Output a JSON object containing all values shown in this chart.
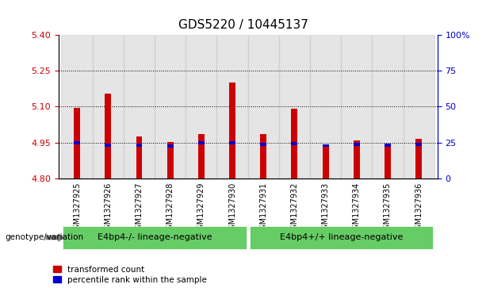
{
  "title": "GDS5220 / 10445137",
  "samples": [
    "GSM1327925",
    "GSM1327926",
    "GSM1327927",
    "GSM1327928",
    "GSM1327929",
    "GSM1327930",
    "GSM1327931",
    "GSM1327932",
    "GSM1327933",
    "GSM1327934",
    "GSM1327935",
    "GSM1327936"
  ],
  "red_values": [
    5.095,
    5.155,
    4.975,
    4.952,
    4.985,
    5.2,
    4.985,
    5.09,
    4.94,
    4.96,
    4.94,
    4.965
  ],
  "blue_values": [
    4.948,
    4.94,
    4.94,
    4.935,
    4.948,
    4.948,
    4.943,
    4.945,
    4.938,
    4.943,
    4.94,
    4.943
  ],
  "ymin": 4.8,
  "ymax": 5.4,
  "yticks": [
    4.8,
    4.95,
    5.1,
    5.25,
    5.4
  ],
  "right_yticks": [
    0,
    25,
    50,
    75,
    100
  ],
  "group1_label": "E4bp4-/- lineage-negative",
  "group2_label": "E4bp4+/+ lineage-negative",
  "group1_indices": [
    0,
    1,
    2,
    3,
    4,
    5
  ],
  "group2_indices": [
    6,
    7,
    8,
    9,
    10,
    11
  ],
  "genotype_label": "genotype/variation",
  "legend_red_label": "transformed count",
  "legend_blue_label": "percentile rank within the sample",
  "bar_width": 0.5,
  "red_color": "#cc0000",
  "blue_color": "#0000cc",
  "group_color": "#66cc66",
  "bar_bg_color": "#cccccc",
  "left_axis_color": "#cc0000",
  "right_axis_color": "#0000cc",
  "grid_color": "#000000",
  "title_fontsize": 11,
  "tick_fontsize": 8,
  "label_fontsize": 8
}
